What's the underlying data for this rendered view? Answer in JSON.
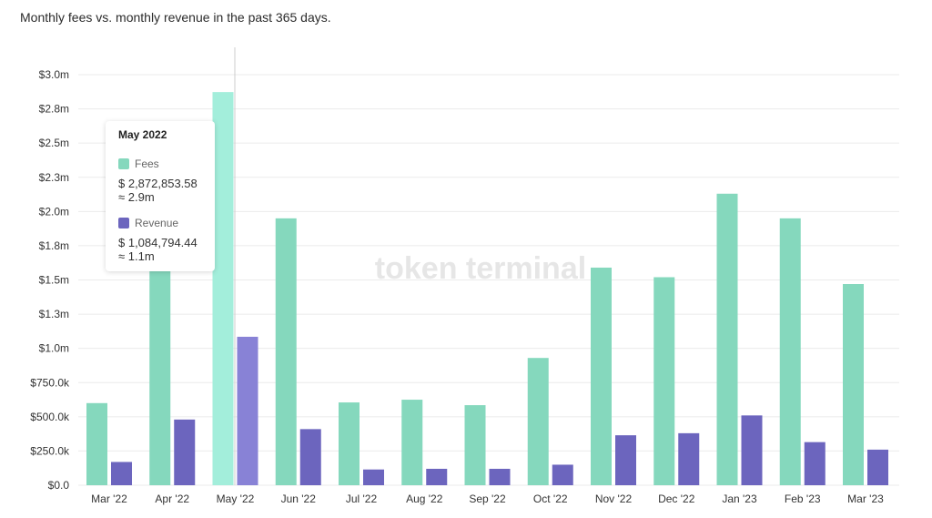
{
  "title": "Monthly fees vs. monthly revenue in the past 365 days.",
  "watermark": "token terminal",
  "chart_data": {
    "type": "bar",
    "title": "Monthly fees vs. monthly revenue in the past 365 days.",
    "categories": [
      "Mar '22",
      "Apr '22",
      "May '22",
      "Jun '22",
      "Jul '22",
      "Aug '22",
      "Sep '22",
      "Oct '22",
      "Nov '22",
      "Dec '22",
      "Jan '23",
      "Feb '23",
      "Mar '23"
    ],
    "series": [
      {
        "name": "Fees",
        "color": "#85d8bd",
        "values": [
          600000,
          1600000,
          2872853.58,
          1950000,
          605000,
          625000,
          585000,
          930000,
          1590000,
          1520000,
          2130000,
          1950000,
          1470000
        ]
      },
      {
        "name": "Revenue",
        "color": "#6c65be",
        "values": [
          170000,
          480000,
          1084794.44,
          410000,
          115000,
          120000,
          120000,
          150000,
          365000,
          380000,
          510000,
          315000,
          260000
        ]
      }
    ],
    "y_ticks": [
      "$0.0",
      "$250.0k",
      "$500.0k",
      "$750.0k",
      "$1.0m",
      "$1.3m",
      "$1.5m",
      "$1.8m",
      "$2.0m",
      "$2.3m",
      "$2.5m",
      "$2.8m",
      "$3.0m"
    ],
    "ylim": [
      0,
      3000000
    ],
    "grid": true,
    "highlight_index": 2,
    "highlight_colors": {
      "Fees": "#a3eedb",
      "Revenue": "#8882d6"
    }
  },
  "tooltip": {
    "title": "May 2022",
    "fees_label": "Fees",
    "fees_value": "$ 2,872,853.58",
    "fees_approx": "≈ 2.9m",
    "revenue_label": "Revenue",
    "revenue_value": "$ 1,084,794.44",
    "revenue_approx": "≈ 1.1m"
  }
}
